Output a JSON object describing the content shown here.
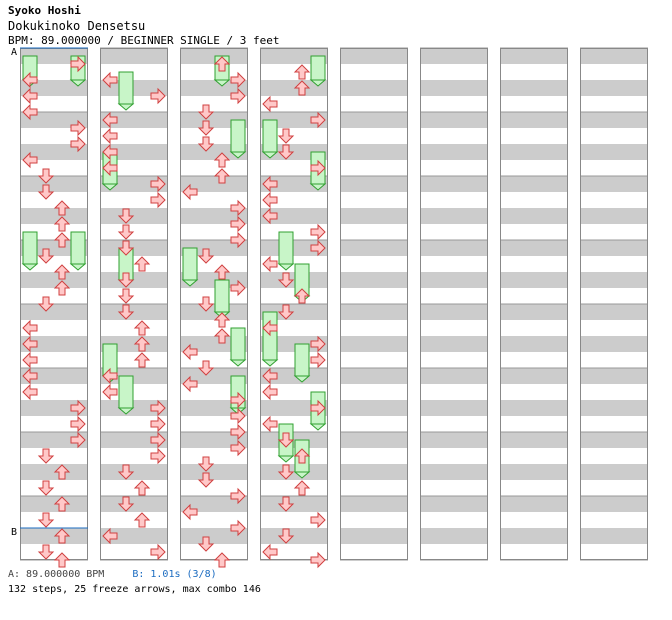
{
  "header": {
    "artist": "Syoko Hoshi",
    "title": "Dokukinoko Densetsu",
    "info": "BPM: 89.000000 / BEGINNER SINGLE / 3 feet"
  },
  "markers": {
    "a": "A",
    "b": "B"
  },
  "footer": {
    "bpm_a": "A: 89.000000 BPM",
    "bpm_b": "B: 1.01s (3/8)",
    "stats": "132 steps, 25 freeze arrows, max combo 146"
  },
  "colors": {
    "stripe": "#cccccc",
    "arrow_fill": "#ffc8c8",
    "arrow_stroke": "#d04040",
    "freeze_fill": "#c8f5c8",
    "freeze_stroke": "#30a030",
    "marker_line": "#1a6bc0"
  },
  "chart_data": {
    "type": "step-chart",
    "lanes": [
      "left",
      "down",
      "up",
      "right"
    ],
    "columns": 8,
    "measures_per_column": 8,
    "arrow_icons": {
      "left": "left-arrow-icon",
      "down": "down-arrow-icon",
      "up": "up-arrow-icon",
      "right": "right-arrow-icon"
    },
    "arrows": [
      [
        0,
        1,
        "r"
      ],
      [
        0,
        3,
        "l"
      ],
      [
        0,
        5,
        "l"
      ],
      [
        0,
        7,
        "l"
      ],
      [
        0,
        9,
        "r"
      ],
      [
        0,
        11,
        "r"
      ],
      [
        0,
        13,
        "l"
      ],
      [
        0,
        15,
        "d"
      ],
      [
        0,
        17,
        "d"
      ],
      [
        0,
        19,
        "u"
      ],
      [
        0,
        21,
        "u"
      ],
      [
        0,
        23,
        "u"
      ],
      [
        0,
        25,
        "d"
      ],
      [
        0,
        27,
        "u"
      ],
      [
        0,
        29,
        "u"
      ],
      [
        0,
        31,
        "d"
      ],
      [
        0,
        34,
        "l"
      ],
      [
        0,
        36,
        "l"
      ],
      [
        0,
        38,
        "l"
      ],
      [
        0,
        40,
        "l"
      ],
      [
        0,
        42,
        "l"
      ],
      [
        0,
        44,
        "r"
      ],
      [
        0,
        46,
        "r"
      ],
      [
        0,
        48,
        "r"
      ],
      [
        0,
        50,
        "d"
      ],
      [
        0,
        52,
        "u"
      ],
      [
        0,
        54,
        "d"
      ],
      [
        0,
        56,
        "u"
      ],
      [
        0,
        58,
        "d"
      ],
      [
        0,
        60,
        "u"
      ],
      [
        0,
        62,
        "d"
      ],
      [
        0,
        63,
        "u"
      ],
      [
        1,
        3,
        "l"
      ],
      [
        1,
        5,
        "r"
      ],
      [
        1,
        8,
        "l"
      ],
      [
        1,
        10,
        "l"
      ],
      [
        1,
        12,
        "l"
      ],
      [
        1,
        14,
        "l"
      ],
      [
        1,
        16,
        "r"
      ],
      [
        1,
        18,
        "r"
      ],
      [
        1,
        20,
        "d"
      ],
      [
        1,
        22,
        "d"
      ],
      [
        1,
        24,
        "d"
      ],
      [
        1,
        26,
        "u"
      ],
      [
        1,
        28,
        "d"
      ],
      [
        1,
        30,
        "d"
      ],
      [
        1,
        32,
        "d"
      ],
      [
        1,
        34,
        "u"
      ],
      [
        1,
        36,
        "u"
      ],
      [
        1,
        38,
        "u"
      ],
      [
        1,
        40,
        "l"
      ],
      [
        1,
        42,
        "l"
      ],
      [
        1,
        44,
        "r"
      ],
      [
        1,
        46,
        "r"
      ],
      [
        1,
        48,
        "r"
      ],
      [
        1,
        50,
        "r"
      ],
      [
        1,
        52,
        "d"
      ],
      [
        1,
        54,
        "u"
      ],
      [
        1,
        56,
        "d"
      ],
      [
        1,
        58,
        "u"
      ],
      [
        1,
        60,
        "l"
      ],
      [
        1,
        62,
        "r"
      ],
      [
        2,
        1,
        "u"
      ],
      [
        2,
        3,
        "r"
      ],
      [
        2,
        5,
        "r"
      ],
      [
        2,
        7,
        "d"
      ],
      [
        2,
        9,
        "d"
      ],
      [
        2,
        11,
        "d"
      ],
      [
        2,
        13,
        "u"
      ],
      [
        2,
        15,
        "u"
      ],
      [
        2,
        17,
        "l"
      ],
      [
        2,
        19,
        "r"
      ],
      [
        2,
        21,
        "r"
      ],
      [
        2,
        23,
        "r"
      ],
      [
        2,
        25,
        "d"
      ],
      [
        2,
        27,
        "u"
      ],
      [
        2,
        29,
        "r"
      ],
      [
        2,
        31,
        "d"
      ],
      [
        2,
        33,
        "u"
      ],
      [
        2,
        35,
        "u"
      ],
      [
        2,
        37,
        "l"
      ],
      [
        2,
        39,
        "d"
      ],
      [
        2,
        41,
        "l"
      ],
      [
        2,
        43,
        "r"
      ],
      [
        2,
        45,
        "r"
      ],
      [
        2,
        47,
        "r"
      ],
      [
        2,
        49,
        "r"
      ],
      [
        2,
        51,
        "d"
      ],
      [
        2,
        53,
        "d"
      ],
      [
        2,
        55,
        "r"
      ],
      [
        2,
        57,
        "l"
      ],
      [
        2,
        59,
        "r"
      ],
      [
        2,
        61,
        "d"
      ],
      [
        2,
        63,
        "u"
      ],
      [
        3,
        2,
        "u"
      ],
      [
        3,
        4,
        "u"
      ],
      [
        3,
        6,
        "l"
      ],
      [
        3,
        8,
        "r"
      ],
      [
        3,
        10,
        "d"
      ],
      [
        3,
        12,
        "d"
      ],
      [
        3,
        14,
        "r"
      ],
      [
        3,
        16,
        "l"
      ],
      [
        3,
        18,
        "l"
      ],
      [
        3,
        20,
        "l"
      ],
      [
        3,
        22,
        "r"
      ],
      [
        3,
        24,
        "r"
      ],
      [
        3,
        26,
        "l"
      ],
      [
        3,
        28,
        "d"
      ],
      [
        3,
        30,
        "u"
      ],
      [
        3,
        32,
        "d"
      ],
      [
        3,
        34,
        "l"
      ],
      [
        3,
        36,
        "r"
      ],
      [
        3,
        38,
        "r"
      ],
      [
        3,
        40,
        "l"
      ],
      [
        3,
        42,
        "l"
      ],
      [
        3,
        44,
        "r"
      ],
      [
        3,
        46,
        "l"
      ],
      [
        3,
        48,
        "d"
      ],
      [
        3,
        50,
        "u"
      ],
      [
        3,
        52,
        "d"
      ],
      [
        3,
        54,
        "u"
      ],
      [
        3,
        56,
        "d"
      ],
      [
        3,
        58,
        "r"
      ],
      [
        3,
        60,
        "d"
      ],
      [
        3,
        62,
        "l"
      ],
      [
        3,
        63,
        "r"
      ]
    ],
    "freezes": [
      [
        0,
        0,
        3,
        "l"
      ],
      [
        0,
        0,
        3,
        "r"
      ],
      [
        0,
        22,
        26,
        "l"
      ],
      [
        0,
        22,
        26,
        "r"
      ],
      [
        1,
        2,
        6,
        "d"
      ],
      [
        1,
        12,
        16,
        "l"
      ],
      [
        1,
        24,
        28,
        "d"
      ],
      [
        1,
        36,
        40,
        "l"
      ],
      [
        1,
        40,
        44,
        "d"
      ],
      [
        2,
        0,
        3,
        "u"
      ],
      [
        2,
        8,
        12,
        "r"
      ],
      [
        2,
        24,
        28,
        "l"
      ],
      [
        2,
        28,
        32,
        "u"
      ],
      [
        2,
        34,
        38,
        "r"
      ],
      [
        2,
        40,
        44,
        "r"
      ],
      [
        3,
        0,
        3,
        "r"
      ],
      [
        3,
        8,
        12,
        "l"
      ],
      [
        3,
        12,
        16,
        "r"
      ],
      [
        3,
        22,
        26,
        "d"
      ],
      [
        3,
        26,
        30,
        "u"
      ],
      [
        3,
        32,
        38,
        "l"
      ],
      [
        3,
        36,
        40,
        "u"
      ],
      [
        3,
        42,
        46,
        "r"
      ],
      [
        3,
        46,
        50,
        "d"
      ],
      [
        3,
        48,
        52,
        "u"
      ]
    ]
  }
}
